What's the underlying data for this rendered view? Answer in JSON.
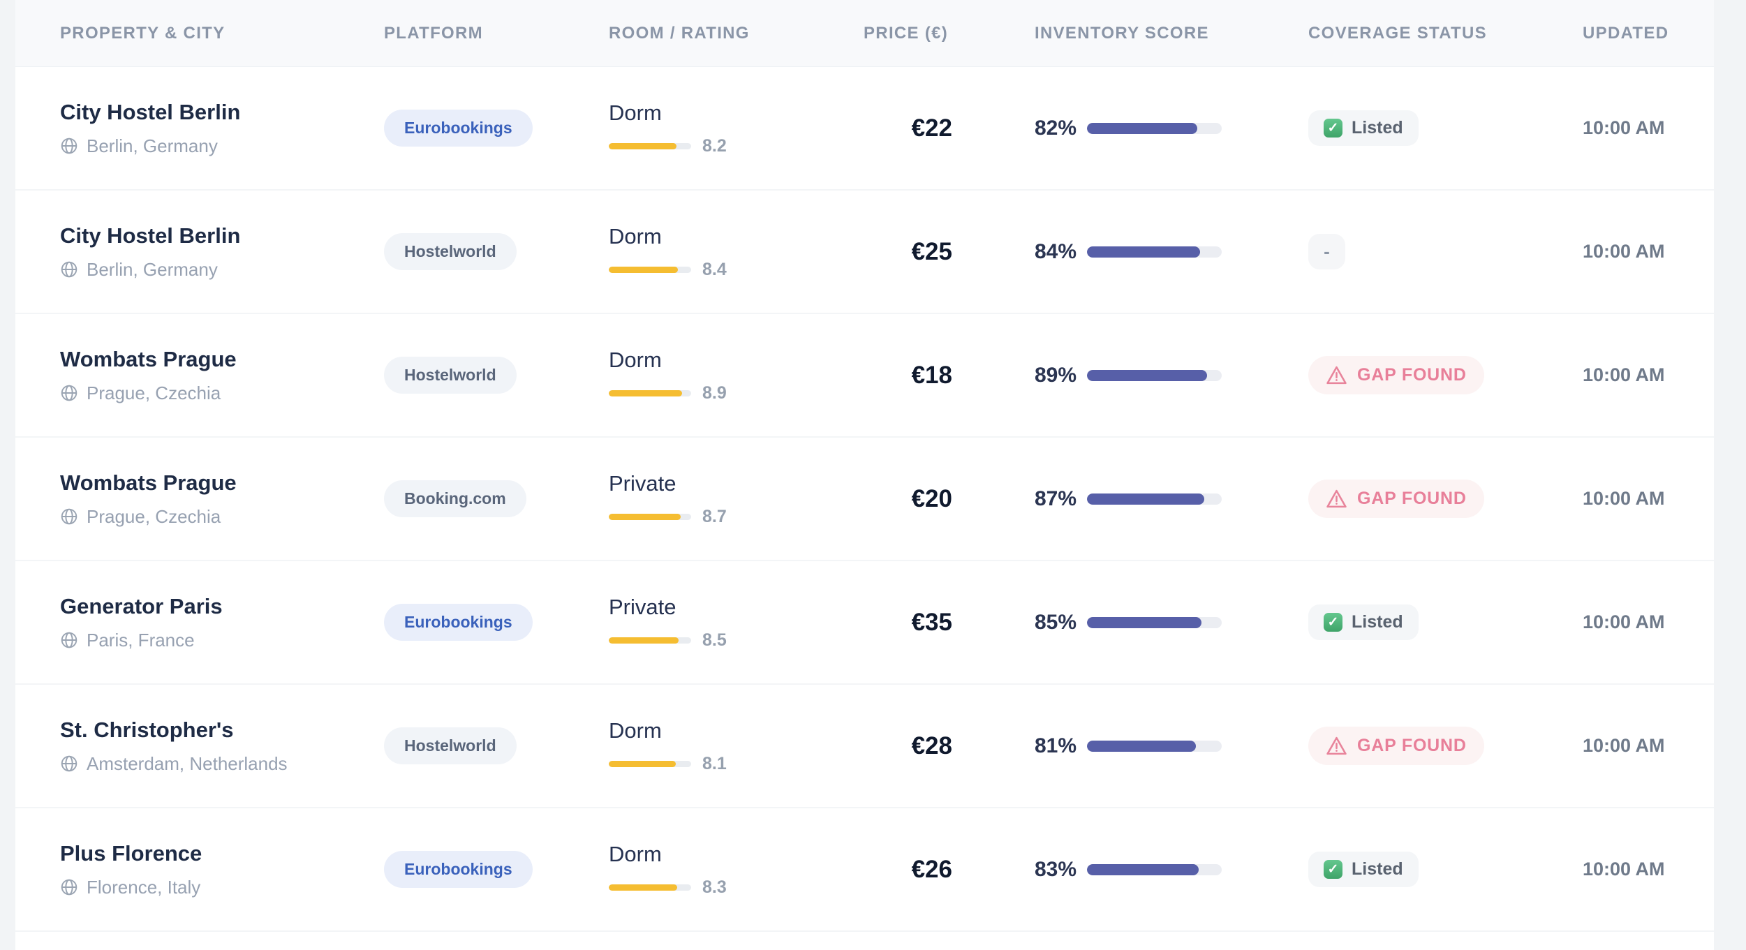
{
  "table": {
    "columns": [
      "PROPERTY & CITY",
      "PLATFORM",
      "ROOM / RATING",
      "PRICE (€)",
      "INVENTORY SCORE",
      "COVERAGE STATUS",
      "UPDATED"
    ],
    "status_labels": {
      "listed": "Listed",
      "gap": "GAP FOUND",
      "none": "-"
    },
    "rows": [
      {
        "property": "City Hostel Berlin",
        "city": "Berlin, Germany",
        "platform": "Eurobookings",
        "platform_variant": "brand",
        "room": "Dorm",
        "rating": "8.2",
        "rating_pct": 82,
        "price": "€22",
        "inventory_label": "82%",
        "inventory_pct": 82,
        "status": "listed",
        "updated": "10:00 AM"
      },
      {
        "property": "City Hostel Berlin",
        "city": "Berlin, Germany",
        "platform": "Hostelworld",
        "platform_variant": "neutral",
        "room": "Dorm",
        "rating": "8.4",
        "rating_pct": 84,
        "price": "€25",
        "inventory_label": "84%",
        "inventory_pct": 84,
        "status": "none",
        "updated": "10:00 AM"
      },
      {
        "property": "Wombats Prague",
        "city": "Prague, Czechia",
        "platform": "Hostelworld",
        "platform_variant": "neutral",
        "room": "Dorm",
        "rating": "8.9",
        "rating_pct": 89,
        "price": "€18",
        "inventory_label": "89%",
        "inventory_pct": 89,
        "status": "gap",
        "updated": "10:00 AM"
      },
      {
        "property": "Wombats Prague",
        "city": "Prague, Czechia",
        "platform": "Booking.com",
        "platform_variant": "neutral",
        "room": "Private",
        "rating": "8.7",
        "rating_pct": 87,
        "price": "€20",
        "inventory_label": "87%",
        "inventory_pct": 87,
        "status": "gap",
        "updated": "10:00 AM"
      },
      {
        "property": "Generator Paris",
        "city": "Paris, France",
        "platform": "Eurobookings",
        "platform_variant": "brand",
        "room": "Private",
        "rating": "8.5",
        "rating_pct": 85,
        "price": "€35",
        "inventory_label": "85%",
        "inventory_pct": 85,
        "status": "listed",
        "updated": "10:00 AM"
      },
      {
        "property": "St. Christopher's",
        "city": "Amsterdam, Netherlands",
        "platform": "Hostelworld",
        "platform_variant": "neutral",
        "room": "Dorm",
        "rating": "8.1",
        "rating_pct": 81,
        "price": "€28",
        "inventory_label": "81%",
        "inventory_pct": 81,
        "status": "gap",
        "updated": "10:00 AM"
      },
      {
        "property": "Plus Florence",
        "city": "Florence, Italy",
        "platform": "Eurobookings",
        "platform_variant": "brand",
        "room": "Dorm",
        "rating": "8.3",
        "rating_pct": 83,
        "price": "€26",
        "inventory_label": "83%",
        "inventory_pct": 83,
        "status": "listed",
        "updated": "10:00 AM"
      }
    ]
  },
  "colors": {
    "page_bg": "#f2f4f6",
    "card_bg": "#ffffff",
    "header_bg": "#f8f9fb",
    "header_text": "#8a95a7",
    "name_text": "#1e2b45",
    "muted_text": "#97a1b1",
    "brand_blue": "#3a61bb",
    "brand_blue_bg": "#e9eefa",
    "rating_yellow": "#f5bd31",
    "inventory_indigo": "#575fa8",
    "listed_green": "#3fa469",
    "gap_pink": "#e87f99",
    "gap_pink_bg": "#fcf3f3"
  }
}
